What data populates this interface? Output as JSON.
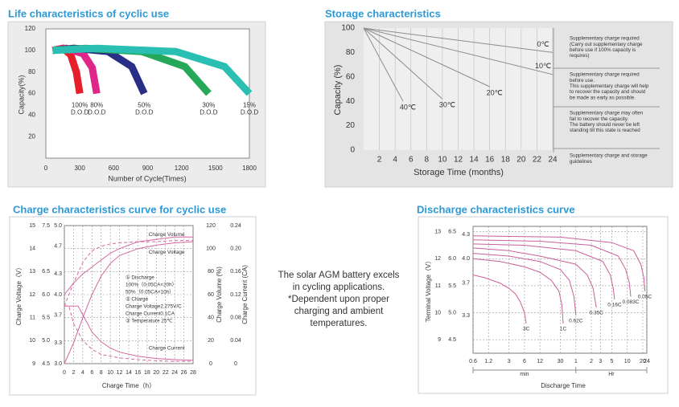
{
  "chart_data": [
    {
      "type": "line",
      "title": "Life characteristics of cyclic use",
      "xlabel": "Number of Cycle(Times)",
      "ylabel": "Capacity(%)",
      "xlim": [
        0,
        1800
      ],
      "xticks": [
        0,
        300,
        600,
        900,
        1200,
        1500,
        1800
      ],
      "ylim": [
        0,
        120
      ],
      "yticks": [
        20,
        40,
        60,
        80,
        100,
        120
      ],
      "series_note": "D.O.D",
      "series": [
        {
          "name": "100%",
          "color": "#e5202b",
          "x": [
            60,
            150,
            220,
            270,
            300
          ],
          "values": [
            100,
            102,
            96,
            80,
            60
          ]
        },
        {
          "name": "80%",
          "color": "#e0268a",
          "x": [
            60,
            180,
            330,
            410,
            450
          ],
          "values": [
            100,
            102,
            97,
            84,
            60
          ]
        },
        {
          "name": "50%",
          "color": "#2a2f86",
          "x": [
            60,
            250,
            550,
            760,
            870
          ],
          "values": [
            100,
            102,
            99,
            85,
            60
          ]
        },
        {
          "name": "30%",
          "color": "#25a85a",
          "x": [
            60,
            350,
            850,
            1230,
            1440
          ],
          "values": [
            100,
            102,
            99,
            85,
            60
          ]
        },
        {
          "name": "15%",
          "color": "#2bbfb3",
          "x": [
            60,
            450,
            1150,
            1580,
            1800
          ],
          "values": [
            100,
            102,
            99,
            85,
            60
          ]
        }
      ]
    },
    {
      "type": "line",
      "title": "Storage characteristics",
      "xlabel": "Storage Time (months)",
      "ylabel": "Capacity (%)",
      "xlim": [
        0,
        24
      ],
      "xticks": [
        2,
        4,
        6,
        8,
        10,
        12,
        14,
        16,
        18,
        20,
        22,
        24
      ],
      "ylim": [
        0,
        100
      ],
      "yticks": [
        0,
        20,
        40,
        60,
        80,
        100
      ],
      "grid": "x",
      "color": "#8c8c8c",
      "series": [
        {
          "name": "0℃",
          "x": [
            0,
            24
          ],
          "values": [
            100,
            80
          ]
        },
        {
          "name": "10℃",
          "x": [
            0,
            24
          ],
          "values": [
            100,
            62
          ]
        },
        {
          "name": "20℃",
          "x": [
            0,
            16
          ],
          "values": [
            100,
            52
          ]
        },
        {
          "name": "30℃",
          "x": [
            0,
            10
          ],
          "values": [
            100,
            42
          ]
        },
        {
          "name": "40℃",
          "x": [
            0,
            5
          ],
          "values": [
            100,
            40
          ]
        }
      ],
      "notes": [
        [
          "Supplementary charge required",
          "(Carry out supplementary charge",
          "before use if 100% capacity is",
          "requires)"
        ],
        [
          "Supplementary charge required",
          "before use.",
          "This supplementary charge will help",
          "to recover the capacity and should",
          "be made  as early as possible."
        ],
        [
          "Supplementary charge may often",
          "fail to recover the capacity.",
          "The battery should never be left",
          "standing till this state is reached"
        ],
        [
          "Supplementary charge and storage",
          "guidelines"
        ]
      ]
    },
    {
      "type": "line",
      "title": "Charge characteristics curve for cyclic use",
      "xlabel": "Charge Time（h）",
      "xlim": [
        0,
        28
      ],
      "xticks": [
        0,
        2,
        4,
        6,
        8,
        10,
        12,
        14,
        16,
        18,
        20,
        22,
        24,
        26,
        28
      ],
      "grid": "both",
      "color": "#d4679f",
      "yaxes": [
        {
          "label": "Charge Voltage（V）",
          "lim": [
            9,
            15
          ],
          "ticks": [
            9,
            10,
            11,
            12,
            13,
            14,
            15
          ]
        },
        {
          "lim": [
            4.5,
            7.5
          ],
          "ticks": [
            4.5,
            {
              "value": 5,
              "label": "5.0"
            },
            5.5,
            {
              "value": 6,
              "label": "6.0"
            },
            6.5,
            7.5
          ]
        },
        {
          "lim": [
            3,
            5
          ],
          "ticks": [
            {
              "value": 3,
              "label": "3.0"
            },
            3.3,
            3.7,
            {
              "value": 4,
              "label": "4.0"
            },
            4.3,
            4.7,
            {
              "value": 5,
              "label": "5.0"
            }
          ]
        },
        {
          "label": "Charge Volume (%)",
          "lim": [
            0,
            120
          ],
          "ticks": [
            0,
            20,
            40,
            60,
            80,
            100,
            120
          ]
        },
        {
          "label": "Charge Current (CA)",
          "lim": [
            0,
            0.24
          ],
          "ticks": [
            0,
            0.04,
            0.08,
            0.12,
            0.16,
            {
              "value": 0.2,
              "label": "0.20"
            },
            0.24
          ]
        }
      ],
      "series": [
        {
          "name": "Charge Volume",
          "axis": 3,
          "x": [
            0,
            2,
            4,
            6,
            8,
            10,
            12,
            16,
            20,
            24,
            28
          ],
          "values": [
            0,
            18,
            40,
            60,
            76,
            87,
            94,
            100,
            103,
            105,
            106
          ]
        },
        {
          "name": "Charge Voltage",
          "axis": 0,
          "x": [
            0,
            2,
            4,
            6,
            8,
            10,
            12,
            16,
            20,
            24,
            28
          ],
          "values": [
            12.0,
            12.5,
            12.9,
            13.2,
            13.5,
            13.8,
            14.0,
            14.3,
            14.4,
            14.5,
            14.5
          ]
        },
        {
          "name": "Charge Current",
          "axis": 4,
          "x": [
            0,
            3,
            4,
            6,
            8,
            10,
            12,
            16,
            20,
            24,
            28
          ],
          "values": [
            0.1,
            0.1,
            0.085,
            0.055,
            0.038,
            0.027,
            0.02,
            0.013,
            0.009,
            0.007,
            0.006
          ]
        },
        {
          "axis": 3,
          "dash": true,
          "x": [
            0,
            2,
            4,
            6,
            8,
            10,
            12,
            16,
            20,
            24,
            28
          ],
          "values": [
            50,
            70,
            88,
            98,
            102,
            104,
            105,
            106,
            106,
            107,
            107
          ]
        },
        {
          "axis": 4,
          "dash": true,
          "x": [
            0,
            1,
            2,
            4,
            6,
            8,
            12,
            16,
            20,
            24,
            28
          ],
          "values": [
            0.1,
            0.1,
            0.07,
            0.04,
            0.025,
            0.016,
            0.01,
            0.007,
            0.005,
            0.004,
            0.004
          ]
        }
      ],
      "notes": [
        "① Discharge",
        "100%（0.05CA×20h）",
        "50%（0.05CA×10h）",
        "② Charge",
        "Charge Voltage2.275V/C",
        "Charge Current0.1CA",
        "③ Temperature 25℃"
      ]
    },
    {
      "type": "line",
      "title": "Discharge characteristics curve",
      "xlabel": "Discharge Time",
      "xscale": "log",
      "xlim": [
        0.6,
        1440
      ],
      "xticks": [
        0.6,
        1.2,
        3,
        6,
        12,
        30,
        {
          "value": 60,
          "label": "1"
        },
        {
          "value": 120,
          "label": "2"
        },
        {
          "value": 180,
          "label": "3"
        },
        {
          "value": 300,
          "label": "5"
        },
        {
          "value": 600,
          "label": "10"
        },
        {
          "value": 1200,
          "label": "20"
        },
        {
          "value": 1440,
          "label": "24"
        }
      ],
      "xunits": [
        "min",
        "Hr"
      ],
      "grid": "both",
      "color": "#c9609a",
      "yaxes": [
        {
          "label": "Terminal Voltage（V）",
          "lim": [
            8.5,
            13.2
          ],
          "ticks": [
            9,
            10,
            11,
            12,
            13
          ]
        },
        {
          "lim": [
            4.25,
            6.6
          ],
          "ticks": [
            4.5,
            {
              "value": 5,
              "label": "5.0"
            },
            5.5,
            {
              "value": 6,
              "label": "6.0"
            },
            6.5
          ]
        },
        {
          "lim": [
            2.833,
            4.4
          ],
          "ticks": [
            3.3,
            3.7,
            {
              "value": 4,
              "label": "4.0"
            },
            4.3
          ]
        }
      ],
      "series": [
        {
          "name": "3C",
          "x": [
            0.6,
            1,
            2,
            3,
            4,
            5,
            6,
            6.5
          ],
          "values": [
            11.4,
            11.3,
            11.1,
            10.9,
            10.7,
            10.4,
            10.0,
            9.6
          ]
        },
        {
          "name": "1C",
          "x": [
            0.6,
            2,
            6,
            12,
            20,
            28,
            32,
            34
          ],
          "values": [
            12.0,
            11.9,
            11.7,
            11.5,
            11.2,
            10.8,
            10.3,
            9.6
          ]
        },
        {
          "name": "0.62C",
          "x": [
            0.6,
            3,
            12,
            30,
            45,
            55,
            60
          ],
          "values": [
            12.2,
            12.1,
            11.9,
            11.6,
            11.2,
            10.6,
            9.9
          ]
        },
        {
          "name": "0.35C",
          "x": [
            0.6,
            3,
            12,
            60,
            100,
            130,
            150
          ],
          "values": [
            12.4,
            12.3,
            12.1,
            11.8,
            11.4,
            10.9,
            10.2
          ]
        },
        {
          "name": "0.16C",
          "x": [
            0.6,
            6,
            60,
            200,
            280,
            320,
            340
          ],
          "values": [
            12.55,
            12.5,
            12.3,
            11.9,
            11.4,
            10.9,
            10.5
          ]
        },
        {
          "name": "0.083C",
          "x": [
            0.6,
            12,
            120,
            400,
            560,
            660,
            700
          ],
          "values": [
            12.7,
            12.65,
            12.5,
            12.1,
            11.6,
            11.1,
            10.6
          ]
        },
        {
          "name": "0.05C",
          "x": [
            0.6,
            30,
            300,
            800,
            1100,
            1260,
            1320
          ],
          "values": [
            12.85,
            12.8,
            12.6,
            12.3,
            11.8,
            11.3,
            10.8
          ]
        }
      ]
    }
  ],
  "caption": [
    "The solar AGM battery excels",
    "in cycling applications.",
    "*Dependent upon proper",
    "charging and ambient",
    "temperatures."
  ]
}
